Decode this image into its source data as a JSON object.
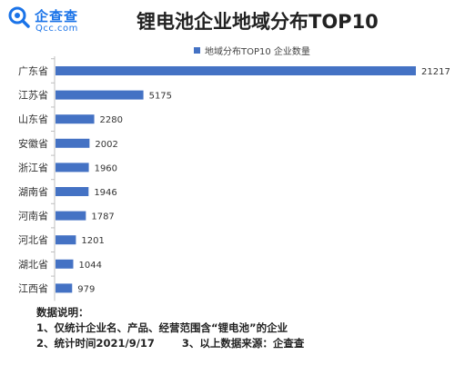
{
  "brand": {
    "name": "企查查",
    "domain": "Qcc.com",
    "color": "#1a73e8"
  },
  "chart_data": {
    "type": "bar",
    "orientation": "horizontal",
    "title": "锂电池企业地域分布TOP10",
    "categories": [
      "广东省",
      "江苏省",
      "山东省",
      "安徽省",
      "浙江省",
      "湖南省",
      "河南省",
      "河北省",
      "湖北省",
      "江西省"
    ],
    "series": [
      {
        "name": "地域分布TOP10 企业数量",
        "values": [
          21217,
          5175,
          2280,
          2002,
          1960,
          1946,
          1787,
          1201,
          1044,
          979
        ],
        "color": "#4472c4"
      }
    ],
    "xlim": [
      0,
      21217
    ],
    "grid": false,
    "legend_position": "top"
  },
  "notes": {
    "heading": "数据说明：",
    "line1": "1、仅统计企业名、产品、经营范围含“锂电池”的企业",
    "line2a": "2、统计时间2021/9/17",
    "line2b": "3、以上数据来源：企查查"
  }
}
